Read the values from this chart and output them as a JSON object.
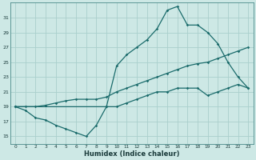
{
  "xlabel": "Humidex (Indice chaleur)",
  "ylabel": "",
  "bg_color": "#cde8e5",
  "grid_color": "#aacfcc",
  "line_color": "#1a6b6b",
  "xlim": [
    -0.5,
    23.5
  ],
  "ylim": [
    14,
    33
  ],
  "xticks": [
    0,
    1,
    2,
    3,
    4,
    5,
    6,
    7,
    8,
    9,
    10,
    11,
    12,
    13,
    14,
    15,
    16,
    17,
    18,
    19,
    20,
    21,
    22,
    23
  ],
  "yticks": [
    15,
    17,
    19,
    21,
    23,
    25,
    27,
    29,
    31
  ],
  "line1_x": [
    0,
    1,
    2,
    3,
    4,
    5,
    6,
    7,
    8,
    9,
    10,
    11,
    12,
    13,
    14,
    15,
    16,
    17,
    18,
    19,
    20,
    21,
    22,
    23
  ],
  "line1_y": [
    19,
    18.5,
    17.5,
    17.2,
    16.5,
    16,
    15.5,
    15,
    16.5,
    19,
    19,
    19.5,
    20,
    20.5,
    21,
    21,
    21.5,
    21.5,
    21.5,
    20.5,
    21,
    21.5,
    22,
    21.5
  ],
  "line2_x": [
    0,
    1,
    2,
    3,
    4,
    5,
    6,
    7,
    8,
    9,
    10,
    11,
    12,
    13,
    14,
    15,
    16,
    17,
    18,
    19,
    20,
    21,
    22,
    23
  ],
  "line2_y": [
    19,
    19,
    19,
    19.2,
    19.5,
    19.8,
    20,
    20,
    20,
    20.3,
    21,
    21.5,
    22,
    22.5,
    23,
    23.5,
    24,
    24.5,
    24.8,
    25,
    25.5,
    26,
    26.5,
    27
  ],
  "line3_x": [
    0,
    9,
    10,
    11,
    12,
    13,
    14,
    15,
    16,
    17,
    18,
    19,
    20,
    21,
    22,
    23
  ],
  "line3_y": [
    19,
    19,
    24.5,
    26,
    27,
    28,
    29.5,
    32,
    32.5,
    30,
    30,
    29,
    27.5,
    25,
    23,
    21.5
  ]
}
